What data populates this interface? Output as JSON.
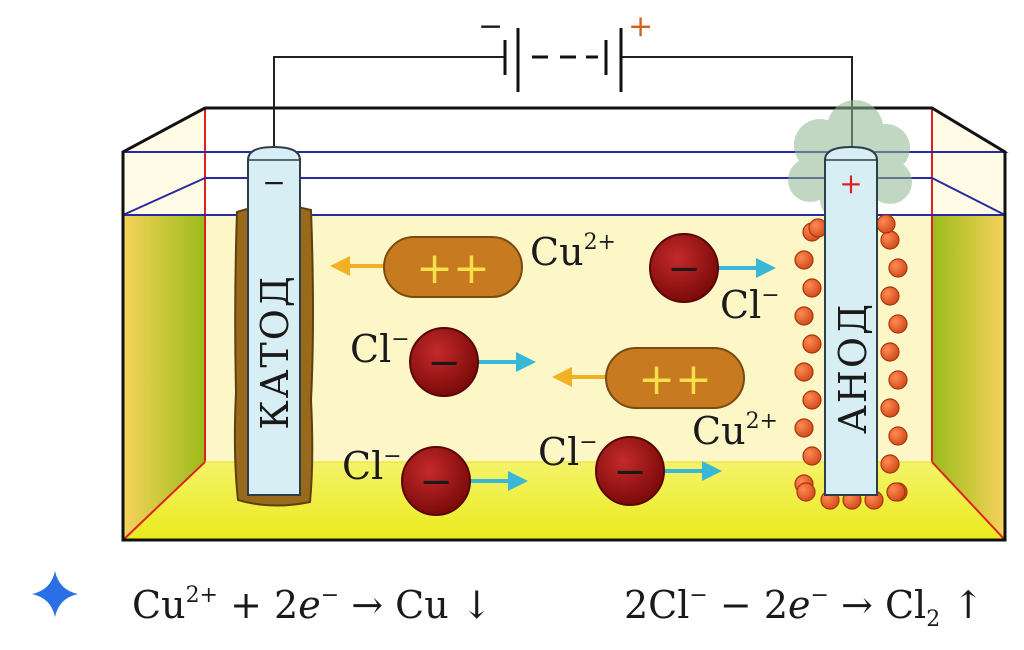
{
  "battery": {
    "minus": "−",
    "plus": "+"
  },
  "cathode": {
    "label": "КАТОД",
    "sign": "−"
  },
  "anode": {
    "label": "АНОД",
    "sign": "+"
  },
  "ions": {
    "cation_symbol": "++",
    "anion_symbol": "−",
    "cu_base": "Cu",
    "cu_charge": "2+",
    "cl_base": "Cl",
    "cl_charge": "−"
  },
  "equations": {
    "cathode": {
      "a": "Cu",
      "a_sup": "2+",
      "b": " + 2",
      "e": "e",
      "e_sup": "−",
      "c": " → Cu ↓"
    },
    "anode": {
      "a": "2Cl",
      "a_sup": "−",
      "b": " − 2",
      "e": "e",
      "e_sup": "−",
      "c": " → Cl",
      "c_sub": "2",
      "d": " ↑"
    }
  },
  "colors": {
    "cathode_tube": "#d7eef4",
    "copper_deposit": "#9a6a1c",
    "cation": "#c77a1f",
    "anion": "#9b1010",
    "chlorine_bubble": "#e8622a",
    "arrow_to_cathode": "#f2b024",
    "arrow_to_anode": "#38b8d6",
    "electrolyte": "#fdf7c8",
    "electrolyte_bottom": "#f3f22a",
    "sparkle": "#2b6fe6"
  }
}
